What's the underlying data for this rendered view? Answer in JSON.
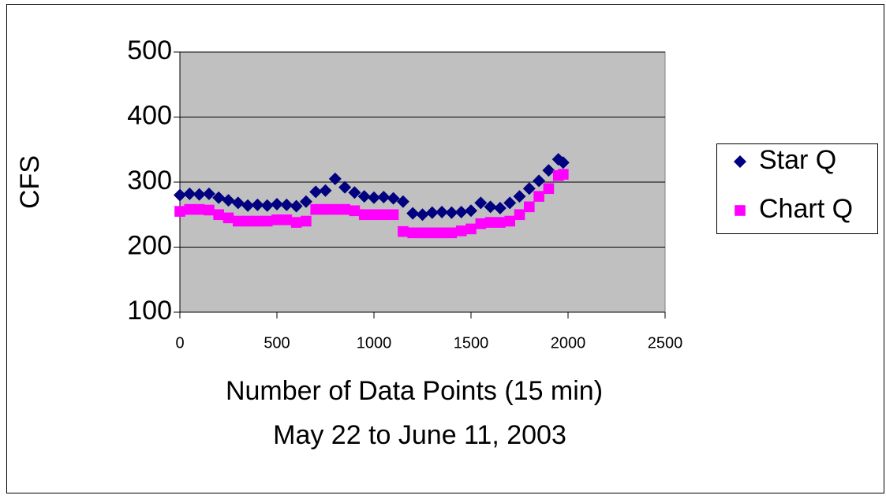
{
  "chart_data": {
    "type": "scatter",
    "ylabel": "CFS",
    "xlabel": [
      "Number of Data Points (15 min)",
      "May 22 to June 11, 2003"
    ],
    "x": [
      0,
      50,
      100,
      150,
      200,
      250,
      300,
      350,
      400,
      450,
      500,
      550,
      600,
      650,
      700,
      750,
      800,
      850,
      900,
      950,
      1000,
      1050,
      1100,
      1150,
      1200,
      1250,
      1300,
      1350,
      1400,
      1450,
      1500,
      1550,
      1600,
      1650,
      1700,
      1750,
      1800,
      1850,
      1900,
      1950,
      1975
    ],
    "series": [
      {
        "name": "Star Q",
        "color": "#000080",
        "marker": "diamond",
        "values": [
          280,
          282,
          281,
          282,
          276,
          272,
          268,
          264,
          265,
          264,
          266,
          265,
          263,
          270,
          285,
          287,
          305,
          292,
          284,
          278,
          276,
          277,
          275,
          270,
          252,
          250,
          253,
          254,
          253,
          254,
          256,
          268,
          262,
          260,
          268,
          278,
          290,
          302,
          318,
          335,
          330
        ]
      },
      {
        "name": "Chart Q",
        "color": "#ff00ff",
        "marker": "square",
        "values": [
          255,
          258,
          258,
          257,
          250,
          245,
          240,
          240,
          240,
          240,
          242,
          242,
          238,
          240,
          258,
          258,
          258,
          258,
          256,
          250,
          250,
          250,
          250,
          224,
          222,
          222,
          222,
          222,
          222,
          225,
          228,
          236,
          238,
          238,
          240,
          250,
          262,
          278,
          290,
          310,
          312
        ]
      }
    ],
    "xlim": [
      0,
      2500
    ],
    "xticks": [
      0,
      500,
      1000,
      1500,
      2000,
      2500
    ],
    "ylim": [
      100,
      500
    ],
    "yticks": [
      100,
      200,
      300,
      400,
      500
    ],
    "grid": true,
    "legend": "right"
  }
}
